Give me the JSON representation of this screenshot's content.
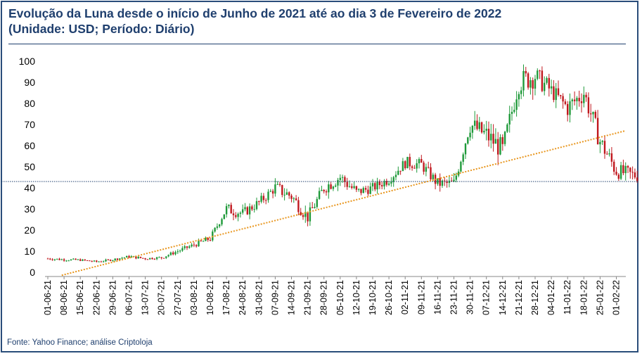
{
  "title_line1": "Evolução da Luna desde o início de Junho de 2021 até ao dia 3 de Fevereiro de 2022",
  "title_line2": "(Unidade: USD; Período: Diário)",
  "source": "Fonte: Yahoo Finance; análise Criptoloja",
  "colors": {
    "frame": "#2a4d7a",
    "title": "#1f3f6e",
    "up": "#1f9a3a",
    "down": "#c0181e",
    "trend": "#e8961e",
    "support": "#1f3f6e"
  },
  "chart_data": {
    "type": "candlestick",
    "ylim": [
      0,
      105
    ],
    "y_ticks": [
      0,
      10,
      20,
      30,
      40,
      50,
      60,
      70,
      80,
      90,
      100
    ],
    "x_tick_labels": [
      "01-06-21",
      "08-06-21",
      "15-06-21",
      "22-06-21",
      "29-06-21",
      "06-07-21",
      "13-07-21",
      "20-07-21",
      "27-07-21",
      "03-08-21",
      "10-08-21",
      "17-08-21",
      "24-08-21",
      "31-08-21",
      "07-09-21",
      "14-09-21",
      "21-09-21",
      "28-09-21",
      "05-10-21",
      "12-10-21",
      "19-10-21",
      "26-10-21",
      "02-11-21",
      "09-11-21",
      "16-11-21",
      "23-11-21",
      "30-11-21",
      "07-12-21",
      "14-12-21",
      "21-12-21",
      "28-12-21",
      "04-01-22",
      "11-01-22",
      "18-01-22",
      "25-01-22",
      "01-02-22"
    ],
    "grid": false,
    "support_level": 43,
    "trendline": {
      "start": {
        "date": "2021-06-12",
        "price": 0
      },
      "end": {
        "date": "2022-02-03",
        "price": 66.5
      }
    },
    "closes_weekly": [
      6.5,
      6.0,
      5.8,
      5.0,
      6.0,
      7.5,
      6.5,
      7.0,
      10,
      13,
      16,
      30,
      28,
      33,
      40,
      36,
      26,
      40,
      45,
      38,
      40,
      44,
      52,
      51,
      42,
      42,
      70,
      65,
      58,
      90,
      93,
      86,
      78,
      85,
      62,
      48,
      46
    ],
    "volatility_weekly": [
      0.8,
      0.7,
      0.6,
      0.6,
      0.7,
      0.8,
      0.7,
      1.0,
      1.3,
      1.6,
      2.0,
      3.5,
      3.0,
      3.0,
      4.0,
      4.0,
      3.5,
      4.0,
      4.0,
      3.0,
      3.0,
      3.0,
      3.5,
      3.5,
      3.5,
      4.0,
      6.0,
      6.5,
      6.0,
      7.0,
      6.0,
      5.0,
      6.0,
      6.0,
      5.5,
      4.5,
      3.5
    ]
  }
}
